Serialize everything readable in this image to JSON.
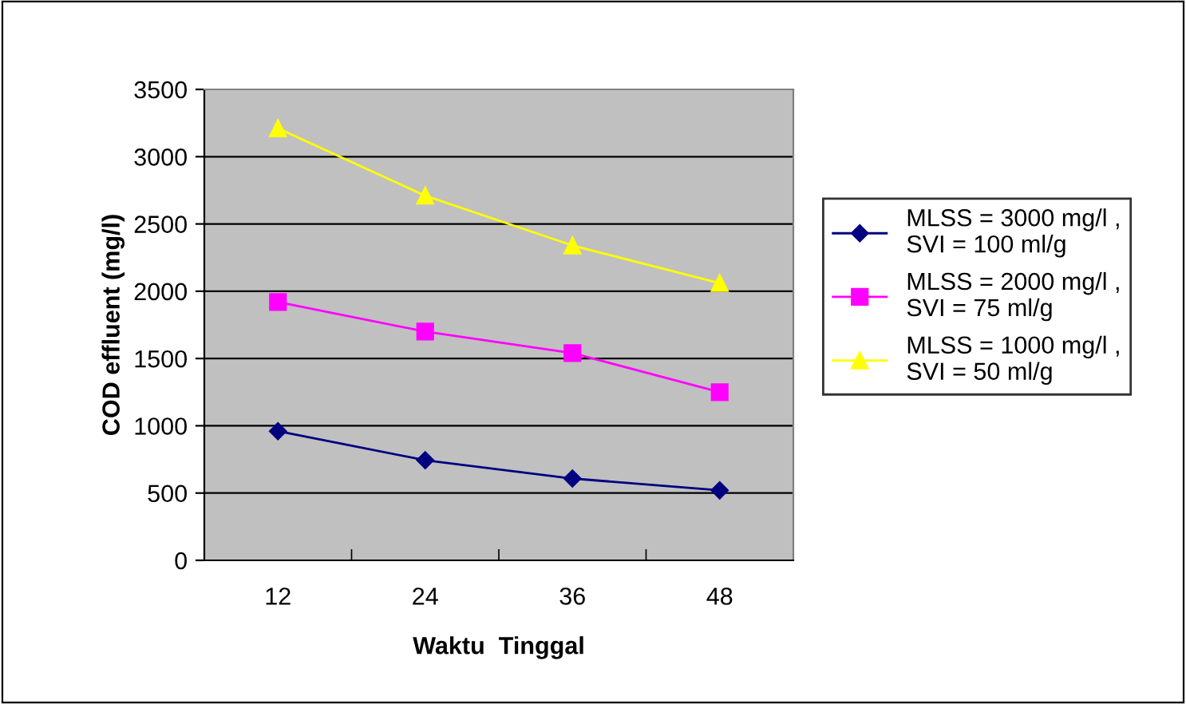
{
  "chart_data": {
    "type": "line",
    "xlabel": "Waktu  Tinggal",
    "ylabel": "COD effluent (mg/l)",
    "categories": [
      "12",
      "24",
      "36",
      "48"
    ],
    "series": [
      {
        "name": "MLSS = 3000 mg/l ,\nSVI = 100 ml/g",
        "color": "#000080",
        "marker": "diamond",
        "values": [
          960,
          744,
          608,
          520
        ]
      },
      {
        "name": "MLSS = 2000 mg/l ,\nSVI = 75 ml/g",
        "color": "#ff00ff",
        "marker": "square",
        "values": [
          1920,
          1700,
          1540,
          1250
        ]
      },
      {
        "name": "MLSS = 1000 mg/l ,\nSVI = 50 ml/g",
        "color": "#ffff00",
        "marker": "triangle",
        "values": [
          3210,
          2710,
          2340,
          2060
        ]
      }
    ],
    "ylim": [
      0,
      3500
    ],
    "yticks": [
      0,
      500,
      1000,
      1500,
      2000,
      2500,
      3000,
      3500
    ],
    "grid": "y",
    "legend": "right",
    "line_style": "solid"
  }
}
